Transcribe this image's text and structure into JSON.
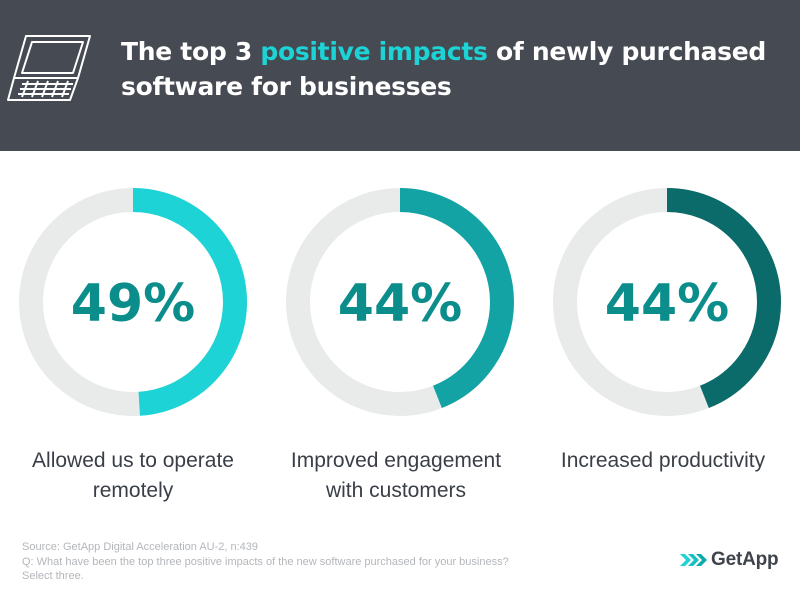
{
  "header": {
    "title_part1": "The top 3 ",
    "title_highlight": "positive impacts",
    "title_part2": " of newly purchased software for businesses",
    "icon": "laptop-icon"
  },
  "colors": {
    "header_bg": "#464a52",
    "highlight": "#1dd3d5",
    "track": "#e9ebeb",
    "series": [
      "#1dd3d5",
      "#14a3a4",
      "#0b6a6a"
    ],
    "value_text": "#0b8e8b"
  },
  "chart_data": {
    "type": "donut",
    "items": [
      {
        "value_label": "49%",
        "value": 49,
        "label_line1": "Allowed us to operate",
        "label_line2": "remotely"
      },
      {
        "value_label": "44%",
        "value": 44,
        "label_line1": "Improved engagement",
        "label_line2": "with customers"
      },
      {
        "value_label": "44%",
        "value": 44,
        "label_line1": "Increased productivity",
        "label_line2": ""
      }
    ]
  },
  "footer": {
    "source_line1": "Source: GetApp Digital Acceleration AU-2, n:439",
    "source_line2": "Q: What have been the top three positive impacts of the new software purchased for your business?",
    "source_line3": "Select three.",
    "logo_text": "GetApp",
    "logo_icon": "getapp-chevrons-icon"
  }
}
